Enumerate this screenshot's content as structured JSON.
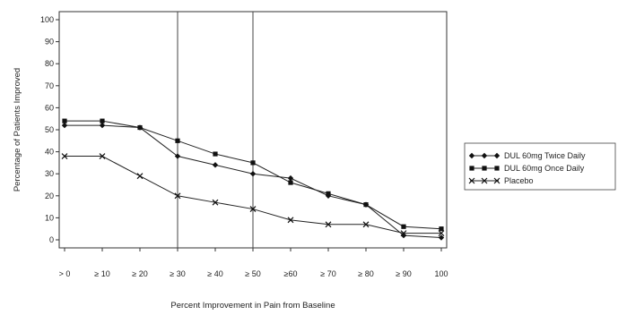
{
  "chart_data": {
    "type": "line",
    "title": "",
    "xlabel": "Percent Improvement in Pain from Baseline",
    "ylabel": "Percentage of Patients Improved",
    "ylim": [
      0,
      100
    ],
    "yticks": [
      "0",
      "10",
      "20",
      "30",
      "40",
      "50",
      "60",
      "70",
      "80",
      "90",
      "100"
    ],
    "categories": [
      "> 0",
      "≥ 10",
      "≥ 20",
      "≥ 30",
      "≥ 40",
      "≥ 50",
      "≥60",
      "≥ 70",
      "≥ 80",
      "≥ 90",
      "100"
    ],
    "reference_lines_at": [
      "≥ 30",
      "≥ 50"
    ],
    "grid": false,
    "legend_position": "right",
    "series": [
      {
        "name": "DUL 60mg Twice Daily",
        "marker": "diamond",
        "values": [
          52,
          52,
          51,
          38,
          34,
          30,
          28,
          20,
          16,
          2,
          1
        ]
      },
      {
        "name": "DUL 60mg Once Daily",
        "marker": "square",
        "values": [
          54,
          54,
          51,
          45,
          39,
          35,
          26,
          21,
          16,
          6,
          5
        ]
      },
      {
        "name": "Placebo",
        "marker": "x",
        "values": [
          38,
          38,
          29,
          20,
          17,
          14,
          9,
          7,
          7,
          3,
          3
        ]
      }
    ]
  }
}
